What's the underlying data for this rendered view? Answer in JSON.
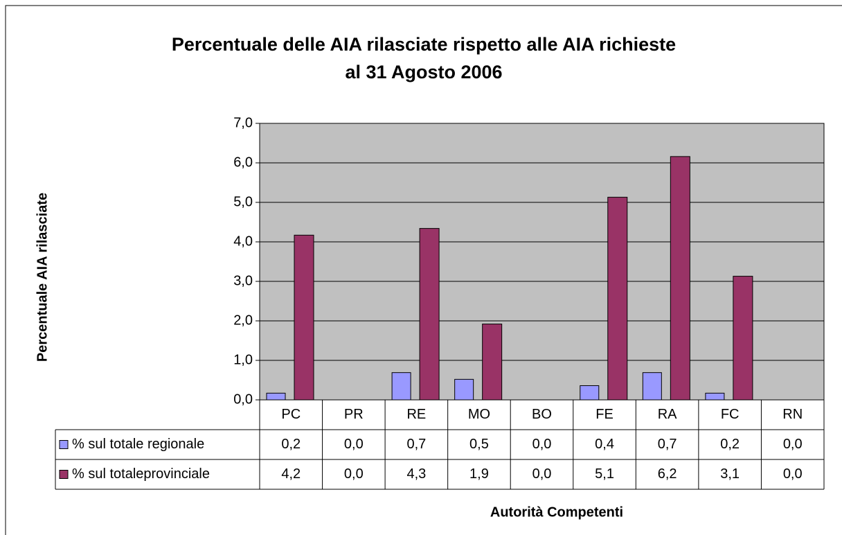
{
  "chart_data": {
    "type": "bar",
    "title": "Percentuale delle AIA rilasciate rispetto alle AIA richieste",
    "subtitle": "al 31 Agosto 2006",
    "y_label": "Percentuale AIA rilasciate",
    "x_label": "Autorità Competenti",
    "categories": [
      "PC",
      "PR",
      "RE",
      "MO",
      "BO",
      "FE",
      "RA",
      "FC",
      "RN"
    ],
    "series": [
      {
        "name": "% sul totale regionale",
        "color": "#9999ff",
        "values": [
          0.17,
          0,
          0.69,
          0.52,
          0,
          0.36,
          0.69,
          0.17,
          0
        ],
        "value_labels": [
          "0,2",
          "0,0",
          "0,7",
          "0,5",
          "0,0",
          "0,4",
          "0,7",
          "0,2",
          "0,0"
        ]
      },
      {
        "name": "% sul totaleprovinciale",
        "color": "#993366",
        "values": [
          4.17,
          0,
          4.34,
          1.92,
          0,
          5.13,
          6.16,
          3.13,
          0
        ],
        "value_labels": [
          "4,2",
          "0,0",
          "4,3",
          "1,9",
          "0,0",
          "5,1",
          "6,2",
          "3,1",
          "0,0"
        ]
      }
    ],
    "ylim": [
      0,
      7
    ],
    "yticks": [
      {
        "value": 0,
        "label": "0,0"
      },
      {
        "value": 1,
        "label": "1,0"
      },
      {
        "value": 2,
        "label": "2,0"
      },
      {
        "value": 3,
        "label": "3,0"
      },
      {
        "value": 4,
        "label": "4,0"
      },
      {
        "value": 5,
        "label": "5,0"
      },
      {
        "value": 6,
        "label": "6,0"
      },
      {
        "value": 7,
        "label": "7,0"
      }
    ],
    "grid": true,
    "plot_background": "#c0c0c0"
  }
}
